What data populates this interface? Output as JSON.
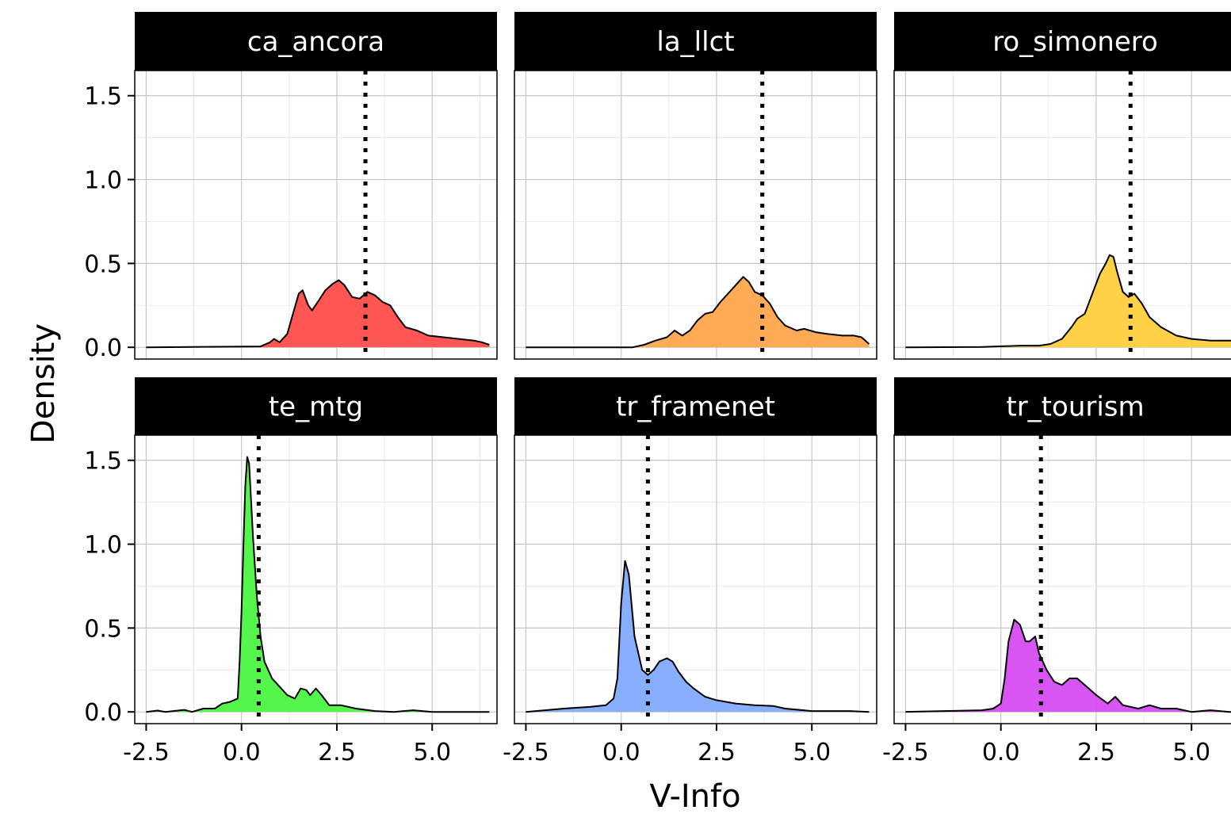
{
  "chart_data": {
    "type": "area",
    "xlabel": "V-Info",
    "ylabel": "Density",
    "xlim": [
      -2.8,
      6.7
    ],
    "ylim": [
      -0.07,
      1.65
    ],
    "x_ticks": [
      -2.5,
      0.0,
      2.5,
      5.0
    ],
    "x_tick_labels": [
      "-2.5",
      "0.0",
      "2.5",
      "5.0"
    ],
    "y_ticks": [
      0.0,
      0.5,
      1.0,
      1.5
    ],
    "y_tick_labels": [
      "0.0",
      "0.5",
      "1.0",
      "1.5"
    ],
    "grid": true,
    "facets": [
      {
        "name": "ca_ancora",
        "color": "#ff4d4a",
        "vline": 3.25,
        "points": [
          [
            -2.5,
            0.0
          ],
          [
            0.5,
            0.005
          ],
          [
            0.75,
            0.03
          ],
          [
            0.85,
            0.05
          ],
          [
            1.0,
            0.03
          ],
          [
            1.2,
            0.08
          ],
          [
            1.35,
            0.2
          ],
          [
            1.5,
            0.32
          ],
          [
            1.6,
            0.34
          ],
          [
            1.75,
            0.25
          ],
          [
            1.85,
            0.22
          ],
          [
            2.0,
            0.27
          ],
          [
            2.2,
            0.34
          ],
          [
            2.4,
            0.38
          ],
          [
            2.55,
            0.4
          ],
          [
            2.7,
            0.37
          ],
          [
            2.9,
            0.3
          ],
          [
            3.1,
            0.29
          ],
          [
            3.3,
            0.33
          ],
          [
            3.5,
            0.31
          ],
          [
            3.7,
            0.27
          ],
          [
            3.9,
            0.25
          ],
          [
            4.1,
            0.18
          ],
          [
            4.3,
            0.12
          ],
          [
            4.6,
            0.1
          ],
          [
            4.9,
            0.07
          ],
          [
            5.3,
            0.06
          ],
          [
            5.7,
            0.05
          ],
          [
            6.1,
            0.04
          ],
          [
            6.3,
            0.03
          ],
          [
            6.5,
            0.015
          ]
        ]
      },
      {
        "name": "la_llct",
        "color": "#ffa64d",
        "vline": 3.7,
        "points": [
          [
            -2.5,
            0.0
          ],
          [
            0.3,
            0.0
          ],
          [
            0.6,
            0.015
          ],
          [
            0.9,
            0.04
          ],
          [
            1.2,
            0.06
          ],
          [
            1.4,
            0.1
          ],
          [
            1.6,
            0.07
          ],
          [
            1.8,
            0.1
          ],
          [
            2.0,
            0.16
          ],
          [
            2.2,
            0.2
          ],
          [
            2.4,
            0.21
          ],
          [
            2.6,
            0.27
          ],
          [
            2.8,
            0.32
          ],
          [
            3.0,
            0.37
          ],
          [
            3.2,
            0.42
          ],
          [
            3.35,
            0.39
          ],
          [
            3.5,
            0.33
          ],
          [
            3.7,
            0.31
          ],
          [
            3.9,
            0.26
          ],
          [
            4.1,
            0.18
          ],
          [
            4.3,
            0.13
          ],
          [
            4.6,
            0.1
          ],
          [
            4.8,
            0.11
          ],
          [
            5.1,
            0.09
          ],
          [
            5.4,
            0.08
          ],
          [
            5.8,
            0.07
          ],
          [
            6.1,
            0.07
          ],
          [
            6.3,
            0.06
          ],
          [
            6.5,
            0.02
          ]
        ]
      },
      {
        "name": "ro_simonero",
        "color": "#ffcf3d",
        "vline": 3.4,
        "points": [
          [
            -2.5,
            0.0
          ],
          [
            -0.5,
            0.002
          ],
          [
            0.5,
            0.01
          ],
          [
            1.0,
            0.01
          ],
          [
            1.3,
            0.02
          ],
          [
            1.6,
            0.05
          ],
          [
            1.85,
            0.12
          ],
          [
            2.0,
            0.17
          ],
          [
            2.2,
            0.2
          ],
          [
            2.4,
            0.32
          ],
          [
            2.6,
            0.44
          ],
          [
            2.75,
            0.5
          ],
          [
            2.85,
            0.55
          ],
          [
            2.95,
            0.54
          ],
          [
            3.05,
            0.45
          ],
          [
            3.2,
            0.33
          ],
          [
            3.35,
            0.3
          ],
          [
            3.5,
            0.32
          ],
          [
            3.7,
            0.26
          ],
          [
            3.9,
            0.18
          ],
          [
            4.2,
            0.12
          ],
          [
            4.6,
            0.07
          ],
          [
            5.0,
            0.05
          ],
          [
            5.5,
            0.04
          ],
          [
            6.0,
            0.04
          ],
          [
            6.5,
            0.04
          ]
        ]
      },
      {
        "name": "te_mtg",
        "color": "#4cf542",
        "vline": 0.45,
        "points": [
          [
            -2.5,
            0.0
          ],
          [
            -2.2,
            0.008
          ],
          [
            -2.0,
            0.0
          ],
          [
            -1.5,
            0.012
          ],
          [
            -1.3,
            0.0
          ],
          [
            -1.0,
            0.02
          ],
          [
            -0.7,
            0.02
          ],
          [
            -0.5,
            0.05
          ],
          [
            -0.3,
            0.06
          ],
          [
            -0.1,
            0.08
          ],
          [
            -0.05,
            0.3
          ],
          [
            0.0,
            0.6
          ],
          [
            0.05,
            1.0
          ],
          [
            0.1,
            1.35
          ],
          [
            0.15,
            1.52
          ],
          [
            0.2,
            1.48
          ],
          [
            0.3,
            1.05
          ],
          [
            0.4,
            0.7
          ],
          [
            0.5,
            0.45
          ],
          [
            0.6,
            0.3
          ],
          [
            0.8,
            0.2
          ],
          [
            1.0,
            0.15
          ],
          [
            1.2,
            0.1
          ],
          [
            1.4,
            0.08
          ],
          [
            1.55,
            0.14
          ],
          [
            1.7,
            0.13
          ],
          [
            1.8,
            0.1
          ],
          [
            1.95,
            0.14
          ],
          [
            2.1,
            0.1
          ],
          [
            2.3,
            0.04
          ],
          [
            2.6,
            0.04
          ],
          [
            3.0,
            0.02
          ],
          [
            3.5,
            0.005
          ],
          [
            4.0,
            0.0
          ],
          [
            4.5,
            0.01
          ],
          [
            5.0,
            0.0
          ],
          [
            6.5,
            0.0
          ]
        ]
      },
      {
        "name": "tr_framenet",
        "color": "#82aaff",
        "vline": 0.7,
        "points": [
          [
            -2.5,
            0.0
          ],
          [
            -1.5,
            0.02
          ],
          [
            -0.8,
            0.03
          ],
          [
            -0.4,
            0.04
          ],
          [
            -0.2,
            0.08
          ],
          [
            -0.1,
            0.2
          ],
          [
            0.0,
            0.65
          ],
          [
            0.1,
            0.9
          ],
          [
            0.2,
            0.82
          ],
          [
            0.35,
            0.45
          ],
          [
            0.55,
            0.25
          ],
          [
            0.7,
            0.22
          ],
          [
            0.85,
            0.25
          ],
          [
            1.0,
            0.3
          ],
          [
            1.2,
            0.32
          ],
          [
            1.35,
            0.3
          ],
          [
            1.5,
            0.24
          ],
          [
            1.7,
            0.18
          ],
          [
            1.9,
            0.14
          ],
          [
            2.2,
            0.09
          ],
          [
            2.5,
            0.07
          ],
          [
            3.0,
            0.05
          ],
          [
            3.5,
            0.04
          ],
          [
            4.0,
            0.035
          ],
          [
            4.3,
            0.02
          ],
          [
            5.0,
            0.005
          ],
          [
            6.0,
            0.005
          ],
          [
            6.5,
            0.0
          ]
        ]
      },
      {
        "name": "tr_tourism",
        "color": "#d64bf2",
        "vline": 1.05,
        "points": [
          [
            -2.5,
            0.0
          ],
          [
            -1.5,
            0.005
          ],
          [
            -0.5,
            0.01
          ],
          [
            -0.2,
            0.02
          ],
          [
            0.0,
            0.05
          ],
          [
            0.1,
            0.2
          ],
          [
            0.2,
            0.42
          ],
          [
            0.35,
            0.55
          ],
          [
            0.5,
            0.52
          ],
          [
            0.65,
            0.42
          ],
          [
            0.75,
            0.42
          ],
          [
            0.9,
            0.45
          ],
          [
            1.0,
            0.35
          ],
          [
            1.2,
            0.25
          ],
          [
            1.4,
            0.18
          ],
          [
            1.6,
            0.16
          ],
          [
            1.8,
            0.2
          ],
          [
            2.0,
            0.2
          ],
          [
            2.2,
            0.16
          ],
          [
            2.5,
            0.1
          ],
          [
            2.8,
            0.05
          ],
          [
            3.0,
            0.09
          ],
          [
            3.2,
            0.04
          ],
          [
            3.6,
            0.02
          ],
          [
            3.9,
            0.04
          ],
          [
            4.2,
            0.02
          ],
          [
            4.6,
            0.02
          ],
          [
            5.0,
            0.0
          ],
          [
            5.5,
            0.01
          ],
          [
            6.0,
            0.0
          ],
          [
            6.5,
            0.0
          ]
        ]
      }
    ]
  }
}
